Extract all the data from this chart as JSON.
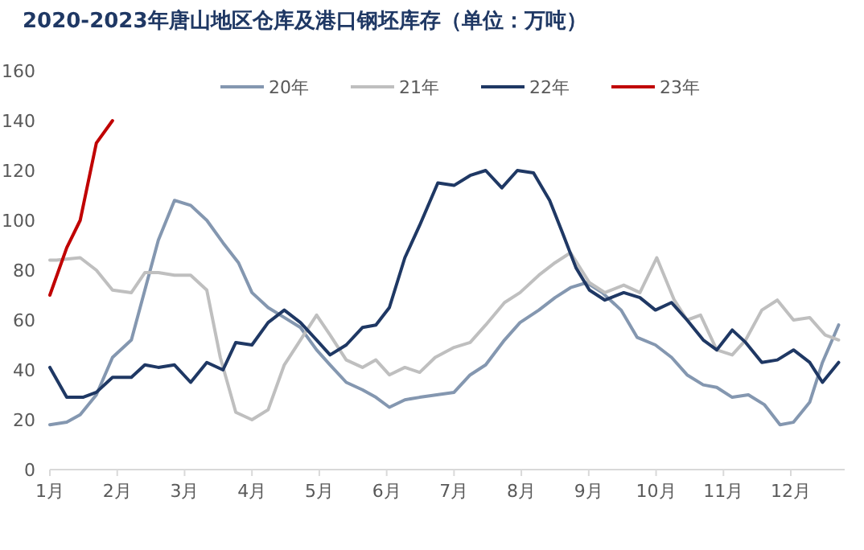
{
  "chart_data": {
    "type": "line",
    "title": "2020-2023年唐山地区仓库及港口钢坯库存（单位：万吨）",
    "xlim": [
      1,
      12.8
    ],
    "ylim": [
      0,
      160
    ],
    "xticks": [
      {
        "value": 1,
        "label": "1月"
      },
      {
        "value": 2,
        "label": "2月"
      },
      {
        "value": 3,
        "label": "3月"
      },
      {
        "value": 4,
        "label": "4月"
      },
      {
        "value": 5,
        "label": "5月"
      },
      {
        "value": 6,
        "label": "6月"
      },
      {
        "value": 7,
        "label": "7月"
      },
      {
        "value": 8,
        "label": "8月"
      },
      {
        "value": 9,
        "label": "9月"
      },
      {
        "value": 10,
        "label": "10月"
      },
      {
        "value": 11,
        "label": "11月"
      },
      {
        "value": 12,
        "label": "12月"
      }
    ],
    "yticks": [
      0,
      20,
      40,
      60,
      80,
      100,
      120,
      140,
      160
    ],
    "legend": "top",
    "grid": false,
    "marker": "none",
    "line_style": "solid",
    "series": [
      {
        "name": "20年",
        "color": "#8497b0",
        "x": [
          1.0,
          1.25,
          1.45,
          1.69,
          1.93,
          2.21,
          2.41,
          2.61,
          2.85,
          3.09,
          3.33,
          3.57,
          3.8,
          4.0,
          4.24,
          4.48,
          4.72,
          4.96,
          5.16,
          5.4,
          5.64,
          5.84,
          6.04,
          6.27,
          6.49,
          7.0,
          7.24,
          7.47,
          7.75,
          7.98,
          8.26,
          8.5,
          8.73,
          8.97,
          9.2,
          9.48,
          9.72,
          9.99,
          10.23,
          10.46,
          10.7,
          10.9,
          11.13,
          11.37,
          11.61,
          11.84,
          12.04,
          12.28,
          12.47,
          12.71
        ],
        "values": [
          18,
          19,
          22,
          30,
          45,
          52,
          72,
          92,
          108,
          106,
          100,
          91,
          83,
          71,
          65,
          61,
          57,
          48,
          42,
          35,
          32,
          29,
          25,
          28,
          29,
          31,
          38,
          42,
          52,
          59,
          64,
          69,
          73,
          75,
          71,
          64,
          53,
          50,
          45,
          38,
          34,
          33,
          29,
          30,
          26,
          18,
          19,
          27,
          43,
          58
        ]
      },
      {
        "name": "21年",
        "color": "#bfbfbf",
        "x": [
          1.0,
          1.1,
          1.45,
          1.69,
          1.93,
          2.21,
          2.41,
          2.61,
          2.85,
          3.09,
          3.33,
          3.53,
          3.76,
          4.0,
          4.24,
          4.48,
          4.72,
          4.96,
          5.16,
          5.4,
          5.64,
          5.84,
          6.04,
          6.27,
          6.49,
          6.72,
          7.0,
          7.24,
          7.47,
          7.75,
          7.98,
          8.26,
          8.5,
          8.73,
          9.01,
          9.24,
          9.52,
          9.76,
          10.01,
          10.27,
          10.46,
          10.66,
          10.9,
          11.13,
          11.33,
          11.57,
          11.8,
          12.04,
          12.28,
          12.51,
          12.71
        ],
        "values": [
          84,
          84,
          85,
          80,
          72,
          71,
          79,
          79,
          78,
          78,
          72,
          45,
          23,
          20,
          24,
          42,
          52,
          62,
          54,
          44,
          41,
          44,
          38,
          41,
          39,
          45,
          49,
          51,
          58,
          67,
          71,
          78,
          83,
          87,
          75,
          71,
          74,
          71,
          85,
          68,
          60,
          62,
          48,
          46,
          52,
          64,
          68,
          60,
          61,
          54,
          52
        ]
      },
      {
        "name": "22年",
        "color": "#1f3864",
        "x": [
          1.0,
          1.25,
          1.49,
          1.69,
          1.93,
          2.21,
          2.41,
          2.61,
          2.85,
          3.09,
          3.33,
          3.57,
          3.76,
          4.0,
          4.24,
          4.48,
          4.72,
          4.96,
          5.16,
          5.4,
          5.64,
          5.84,
          6.04,
          6.27,
          6.49,
          6.76,
          7.0,
          7.24,
          7.47,
          7.71,
          7.94,
          8.18,
          8.42,
          8.61,
          8.81,
          9.01,
          9.24,
          9.52,
          9.76,
          9.99,
          10.23,
          10.46,
          10.7,
          10.9,
          11.13,
          11.33,
          11.57,
          11.8,
          12.04,
          12.28,
          12.47,
          12.71
        ],
        "values": [
          41,
          29,
          29,
          31,
          37,
          37,
          42,
          41,
          42,
          35,
          43,
          40,
          51,
          50,
          59,
          64,
          59,
          52,
          46,
          50,
          57,
          58,
          65,
          85,
          98,
          115,
          114,
          118,
          120,
          113,
          120,
          119,
          108,
          95,
          81,
          72,
          68,
          71,
          69,
          64,
          67,
          60,
          52,
          48,
          56,
          51,
          43,
          44,
          48,
          43,
          35,
          43
        ]
      },
      {
        "name": "23年",
        "color": "#c00000",
        "x": [
          1.0,
          1.25,
          1.45,
          1.69,
          1.93
        ],
        "values": [
          70,
          89,
          100,
          131,
          140
        ]
      }
    ]
  }
}
